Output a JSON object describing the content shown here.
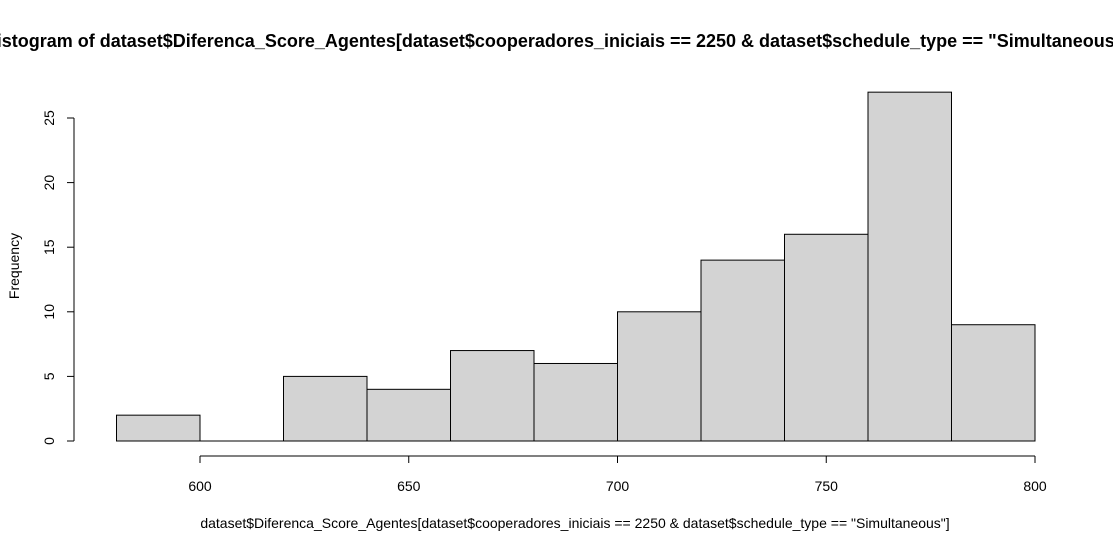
{
  "chart_data": {
    "type": "bar",
    "title": "Histogram of dataset$Diferenca_Score_Agentes[dataset$cooperadores_iniciais == 2250 & dataset$schedule_type == \"Simultaneous\"]",
    "xlabel": "dataset$Diferenca_Score_Agentes[dataset$cooperadores_iniciais == 2250 & dataset$schedule_type == \"Simultaneous\"]",
    "ylabel": "Frequency",
    "bins": [
      {
        "from": 580,
        "to": 600,
        "count": 2
      },
      {
        "from": 600,
        "to": 620,
        "count": 0
      },
      {
        "from": 620,
        "to": 640,
        "count": 5
      },
      {
        "from": 640,
        "to": 660,
        "count": 4
      },
      {
        "from": 660,
        "to": 680,
        "count": 7
      },
      {
        "from": 680,
        "to": 700,
        "count": 6
      },
      {
        "from": 700,
        "to": 720,
        "count": 10
      },
      {
        "from": 720,
        "to": 740,
        "count": 14
      },
      {
        "from": 740,
        "to": 760,
        "count": 16
      },
      {
        "from": 760,
        "to": 780,
        "count": 27
      },
      {
        "from": 780,
        "to": 800,
        "count": 9
      }
    ],
    "x_ticks": [
      600,
      650,
      700,
      750,
      800
    ],
    "y_ticks": [
      0,
      5,
      10,
      15,
      20,
      25
    ],
    "xlim": [
      580,
      800
    ],
    "ylim": [
      0,
      27
    ],
    "bar_fill": "#d3d3d3",
    "bar_stroke": "#000000",
    "grid": false,
    "legend": "none"
  }
}
